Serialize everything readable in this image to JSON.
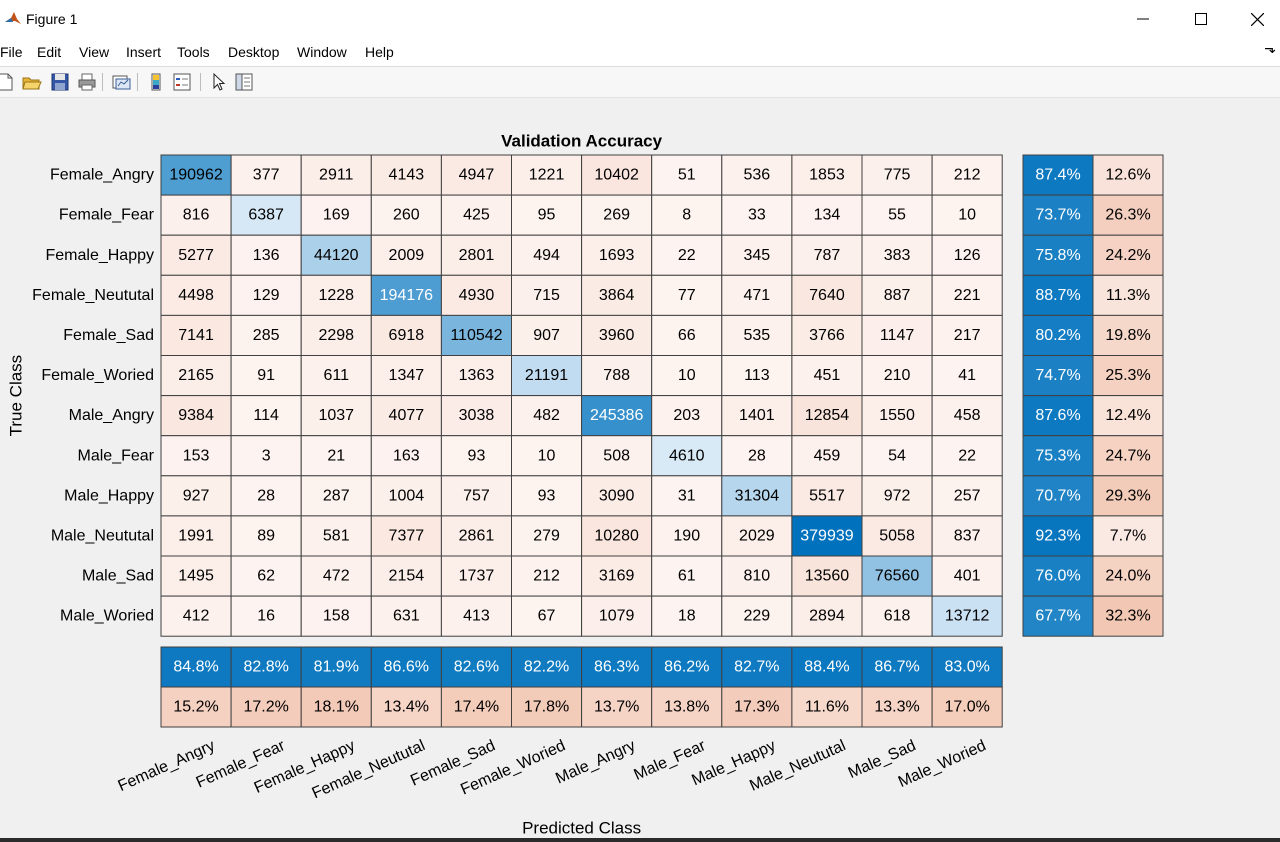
{
  "window": {
    "title": "Figure 1",
    "menu": [
      "File",
      "Edit",
      "View",
      "Insert",
      "Tools",
      "Desktop",
      "Window",
      "Help"
    ],
    "menu_arrow": "⬎",
    "toolbar_icons": [
      "new-figure-icon",
      "open-file-icon",
      "save-icon",
      "print-icon",
      "link-plot-icon",
      "insert-colorbar-icon",
      "insert-legend-icon",
      "edit-plot-icon",
      "property-inspector-icon"
    ]
  },
  "colors": {
    "diag_min": "#eaf3fb",
    "diag_max": "#0072bd",
    "off_low": "#fdf4f1",
    "off_high": "#f2c6b2",
    "grid": "#404040"
  },
  "chart_data": {
    "type": "heatmap",
    "title": "Validation Accuracy",
    "xlabel": "Predicted Class",
    "ylabel": "True Class",
    "classes": [
      "Female_Angry",
      "Female_Fear",
      "Female_Happy",
      "Female_Neututal",
      "Female_Sad",
      "Female_Woried",
      "Male_Angry",
      "Male_Fear",
      "Male_Happy",
      "Male_Neututal",
      "Male_Sad",
      "Male_Woried"
    ],
    "matrix": [
      [
        190962,
        377,
        2911,
        4143,
        4947,
        1221,
        10402,
        51,
        536,
        1853,
        775,
        212
      ],
      [
        816,
        6387,
        169,
        260,
        425,
        95,
        269,
        8,
        33,
        134,
        55,
        10
      ],
      [
        5277,
        136,
        44120,
        2009,
        2801,
        494,
        1693,
        22,
        345,
        787,
        383,
        126
      ],
      [
        4498,
        129,
        1228,
        194176,
        4930,
        715,
        3864,
        77,
        471,
        7640,
        887,
        221
      ],
      [
        7141,
        285,
        2298,
        6918,
        110542,
        907,
        3960,
        66,
        535,
        3766,
        1147,
        217
      ],
      [
        2165,
        91,
        611,
        1347,
        1363,
        21191,
        788,
        10,
        113,
        451,
        210,
        41
      ],
      [
        9384,
        114,
        1037,
        4077,
        3038,
        482,
        245386,
        203,
        1401,
        12854,
        1550,
        458
      ],
      [
        153,
        3,
        21,
        163,
        93,
        10,
        508,
        4610,
        28,
        459,
        54,
        22
      ],
      [
        927,
        28,
        287,
        1004,
        757,
        93,
        3090,
        31,
        31304,
        5517,
        972,
        257
      ],
      [
        1991,
        89,
        581,
        7377,
        2861,
        279,
        10280,
        190,
        2029,
        379939,
        5058,
        837
      ],
      [
        1495,
        62,
        472,
        2154,
        1737,
        212,
        3169,
        61,
        810,
        13560,
        76560,
        401
      ],
      [
        412,
        16,
        158,
        631,
        413,
        67,
        1079,
        18,
        229,
        2894,
        618,
        13712
      ]
    ],
    "row_summary": {
      "correct": [
        "87.4%",
        "73.7%",
        "75.8%",
        "88.7%",
        "80.2%",
        "74.7%",
        "87.6%",
        "75.3%",
        "70.7%",
        "92.3%",
        "76.0%",
        "67.7%"
      ],
      "incorrect": [
        "12.6%",
        "26.3%",
        "24.2%",
        "11.3%",
        "19.8%",
        "25.3%",
        "12.4%",
        "24.7%",
        "29.3%",
        "7.7%",
        "24.0%",
        "32.3%"
      ]
    },
    "col_summary": {
      "correct": [
        "84.8%",
        "82.8%",
        "81.9%",
        "86.6%",
        "82.6%",
        "82.2%",
        "86.3%",
        "86.2%",
        "82.7%",
        "88.4%",
        "86.7%",
        "83.0%"
      ],
      "incorrect": [
        "15.2%",
        "17.2%",
        "18.1%",
        "13.4%",
        "17.4%",
        "17.8%",
        "13.7%",
        "13.8%",
        "17.3%",
        "11.6%",
        "13.3%",
        "17.0%"
      ]
    }
  }
}
